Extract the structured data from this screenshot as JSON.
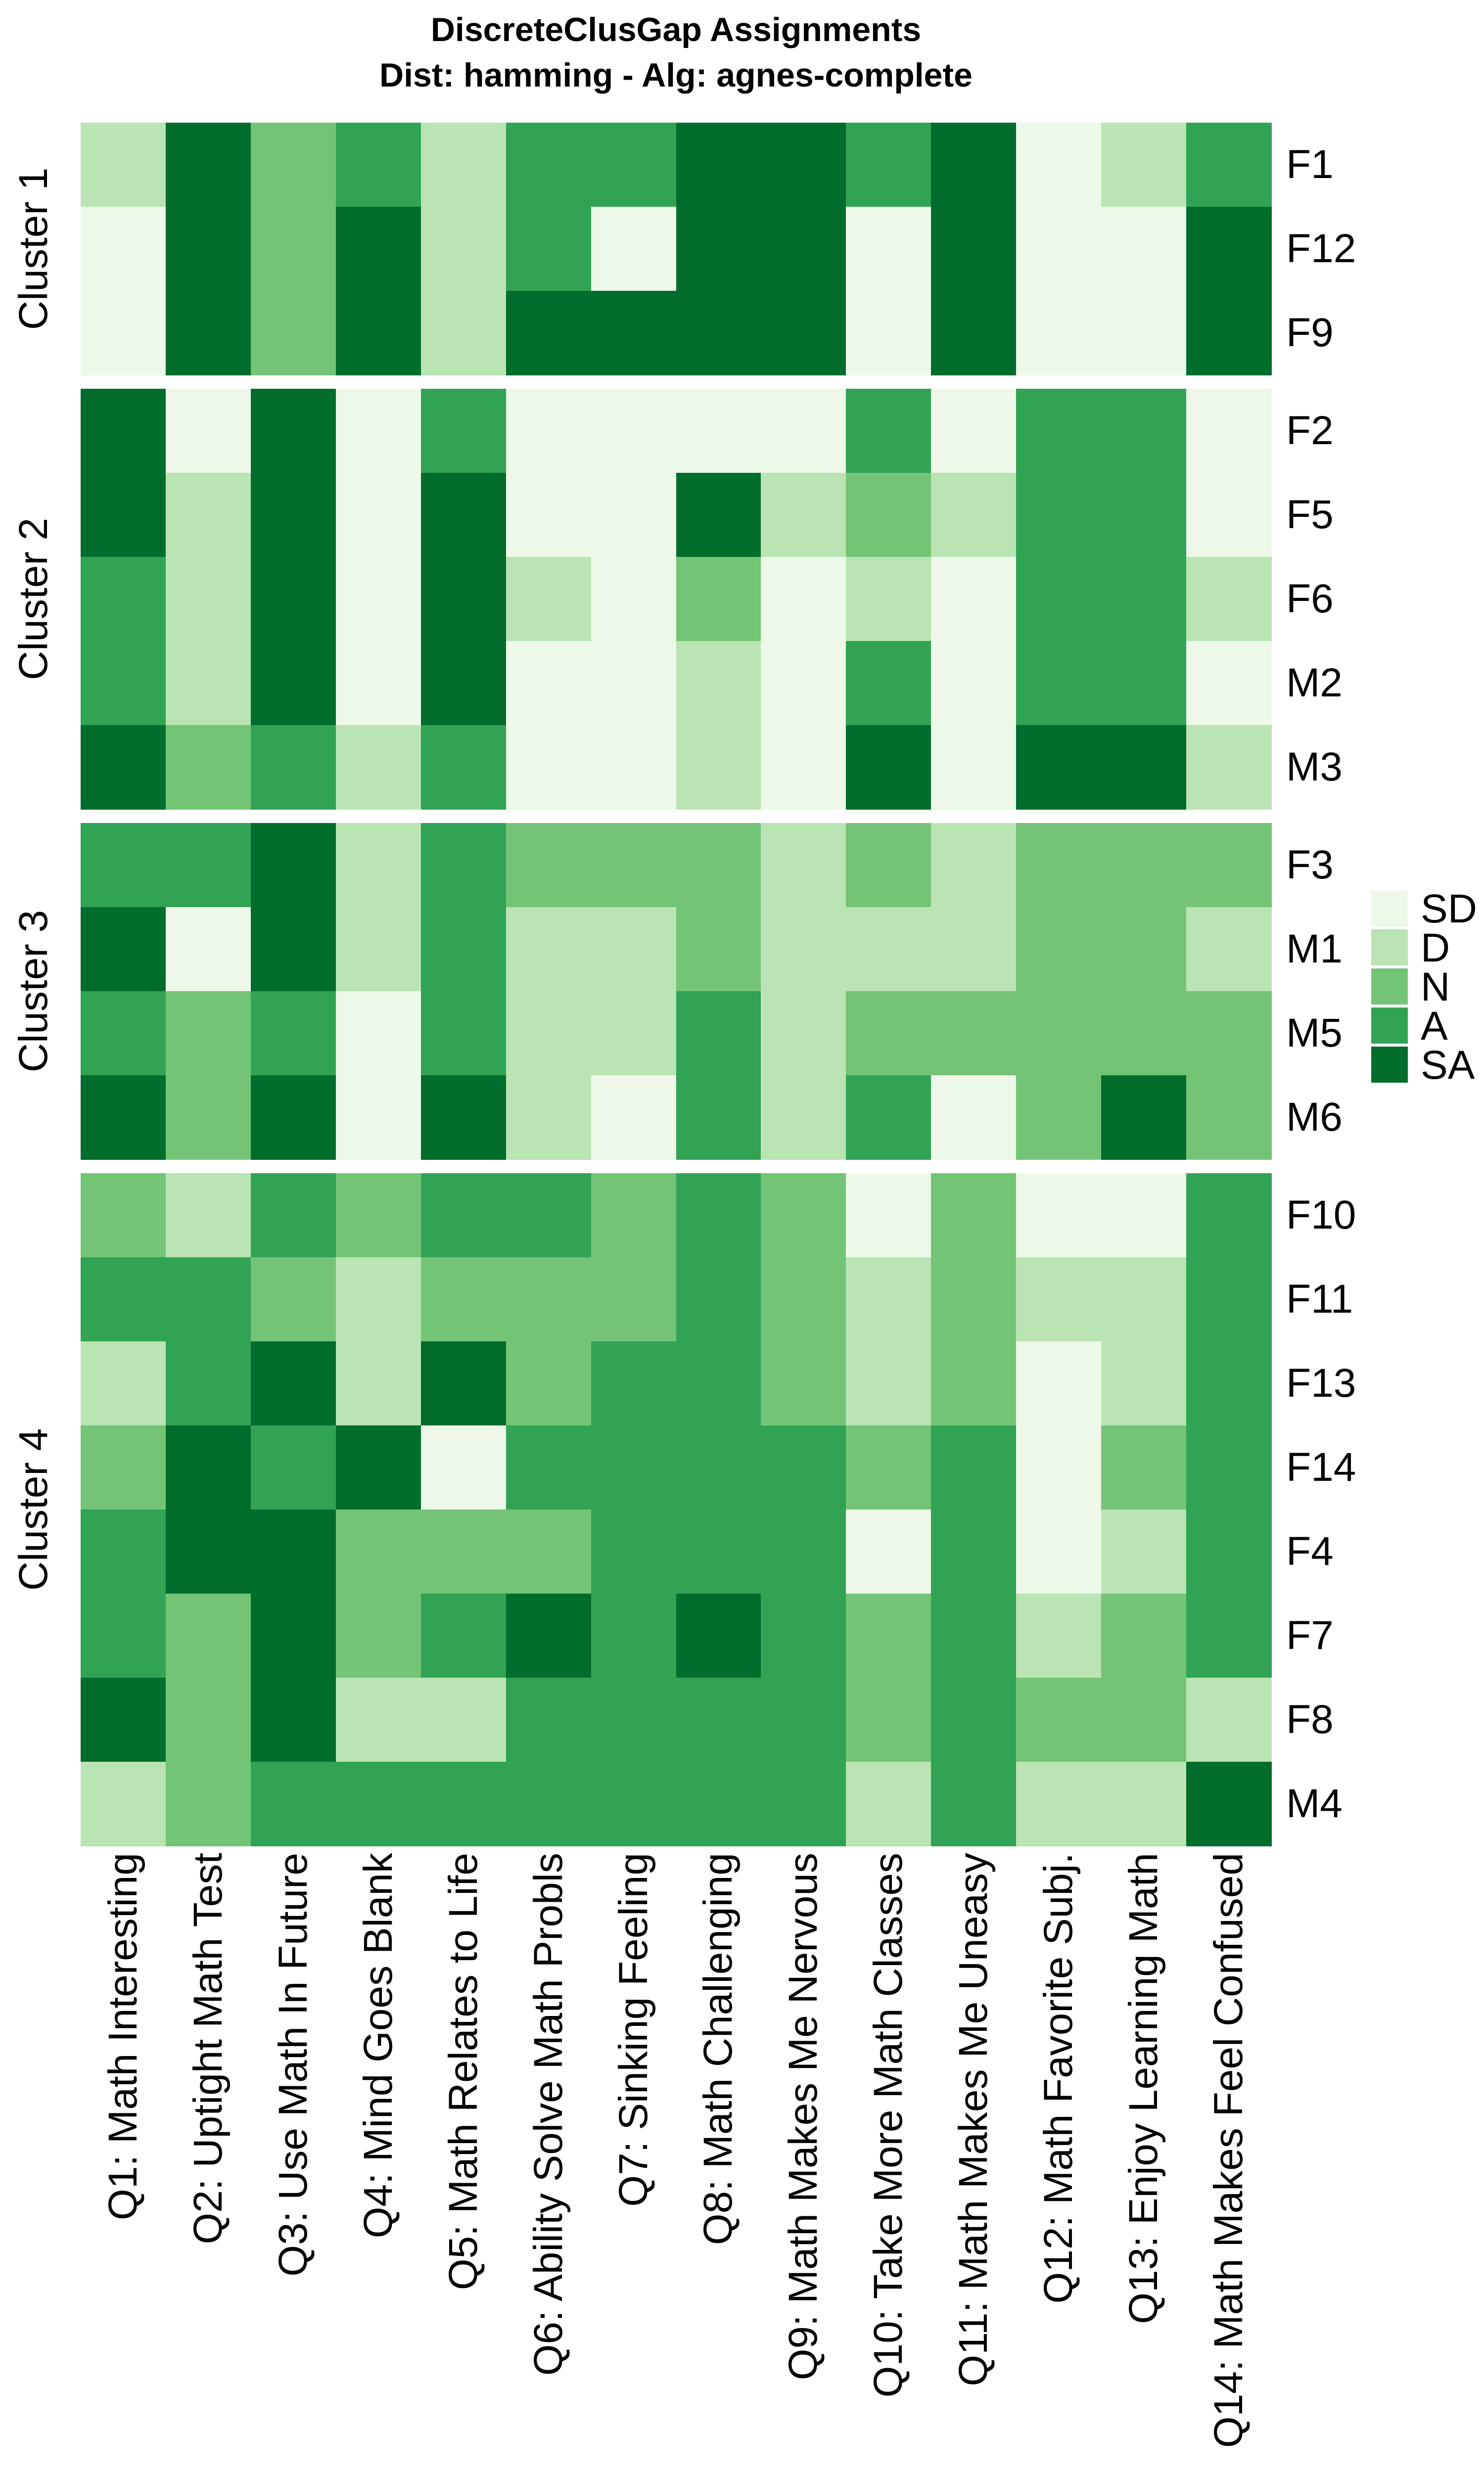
{
  "title": {
    "line1": "DiscreteClusGap Assignments",
    "line2": "Dist: hamming - Alg: agnes-complete"
  },
  "legend": {
    "items": [
      {
        "label": "SD",
        "color": "#EDF8E9"
      },
      {
        "label": "D",
        "color": "#BAE4B3"
      },
      {
        "label": "N",
        "color": "#74C476"
      },
      {
        "label": "A",
        "color": "#31A354"
      },
      {
        "label": "SA",
        "color": "#006D2C"
      }
    ]
  },
  "chart_data": {
    "type": "heatmap",
    "title": "DiscreteClusGap Assignments",
    "subtitle": "Dist: hamming - Alg: agnes-complete",
    "value_levels": [
      "SD",
      "D",
      "N",
      "A",
      "SA"
    ],
    "level_colors": {
      "SD": "#EDF8E9",
      "D": "#BAE4B3",
      "N": "#74C476",
      "A": "#31A354",
      "SA": "#006D2C"
    },
    "legend_position": "right",
    "grid": "off",
    "x_labels": [
      "Q1: Math Interesting",
      "Q2: Uptight Math Test",
      "Q3: Use Math In Future",
      "Q4: Mind Goes Blank",
      "Q5: Math Relates to Life",
      "Q6: Ability Solve Math Probls",
      "Q7: Sinking Feeling",
      "Q8: Math Challenging",
      "Q9: Math Makes Me Nervous",
      "Q10: Take More Math Classes",
      "Q11: Math Makes Me Uneasy",
      "Q12: Math Favorite Subj.",
      "Q13: Enjoy Learning Math",
      "Q14: Math Makes Feel Confused"
    ],
    "clusters": [
      {
        "name": "Cluster 1",
        "rows": [
          {
            "label": "F1",
            "values": [
              "D",
              "SA",
              "N",
              "A",
              "D",
              "A",
              "A",
              "SA",
              "SA",
              "A",
              "SA",
              "SD",
              "D",
              "A"
            ]
          },
          {
            "label": "F12",
            "values": [
              "SD",
              "SA",
              "N",
              "SA",
              "D",
              "A",
              "SD",
              "SA",
              "SA",
              "SD",
              "SA",
              "SD",
              "SD",
              "SA"
            ]
          },
          {
            "label": "F9",
            "values": [
              "SD",
              "SA",
              "N",
              "SA",
              "D",
              "SA",
              "SA",
              "SA",
              "SA",
              "SD",
              "SA",
              "SD",
              "SD",
              "SA"
            ]
          }
        ]
      },
      {
        "name": "Cluster 2",
        "rows": [
          {
            "label": "F2",
            "values": [
              "SA",
              "SD",
              "SA",
              "SD",
              "A",
              "SD",
              "SD",
              "SD",
              "SD",
              "A",
              "SD",
              "A",
              "A",
              "SD"
            ]
          },
          {
            "label": "F5",
            "values": [
              "SA",
              "D",
              "SA",
              "SD",
              "SA",
              "SD",
              "SD",
              "SA",
              "D",
              "N",
              "D",
              "A",
              "A",
              "SD"
            ]
          },
          {
            "label": "F6",
            "values": [
              "A",
              "D",
              "SA",
              "SD",
              "SA",
              "D",
              "SD",
              "N",
              "SD",
              "D",
              "SD",
              "A",
              "A",
              "D"
            ]
          },
          {
            "label": "M2",
            "values": [
              "A",
              "D",
              "SA",
              "SD",
              "SA",
              "SD",
              "SD",
              "D",
              "SD",
              "A",
              "SD",
              "A",
              "A",
              "SD"
            ]
          },
          {
            "label": "M3",
            "values": [
              "SA",
              "N",
              "A",
              "D",
              "A",
              "SD",
              "SD",
              "D",
              "SD",
              "SA",
              "SD",
              "SA",
              "SA",
              "D"
            ]
          }
        ]
      },
      {
        "name": "Cluster 3",
        "rows": [
          {
            "label": "F3",
            "values": [
              "A",
              "A",
              "SA",
              "D",
              "A",
              "N",
              "N",
              "N",
              "D",
              "N",
              "D",
              "N",
              "N",
              "N"
            ]
          },
          {
            "label": "M1",
            "values": [
              "SA",
              "SD",
              "SA",
              "D",
              "A",
              "D",
              "D",
              "N",
              "D",
              "D",
              "D",
              "N",
              "N",
              "D"
            ]
          },
          {
            "label": "M5",
            "values": [
              "A",
              "N",
              "A",
              "SD",
              "A",
              "D",
              "D",
              "A",
              "D",
              "N",
              "N",
              "N",
              "N",
              "N"
            ]
          },
          {
            "label": "M6",
            "values": [
              "SA",
              "N",
              "SA",
              "SD",
              "SA",
              "D",
              "SD",
              "A",
              "D",
              "A",
              "SD",
              "N",
              "SA",
              "N"
            ]
          }
        ]
      },
      {
        "name": "Cluster 4",
        "rows": [
          {
            "label": "F10",
            "values": [
              "N",
              "D",
              "A",
              "N",
              "A",
              "A",
              "N",
              "A",
              "N",
              "SD",
              "N",
              "SD",
              "SD",
              "A"
            ]
          },
          {
            "label": "F11",
            "values": [
              "A",
              "A",
              "N",
              "D",
              "N",
              "N",
              "N",
              "A",
              "N",
              "D",
              "N",
              "D",
              "D",
              "A"
            ]
          },
          {
            "label": "F13",
            "values": [
              "D",
              "A",
              "SA",
              "D",
              "SA",
              "N",
              "A",
              "A",
              "N",
              "D",
              "N",
              "SD",
              "D",
              "A"
            ]
          },
          {
            "label": "F14",
            "values": [
              "N",
              "SA",
              "A",
              "SA",
              "SD",
              "A",
              "A",
              "A",
              "A",
              "N",
              "A",
              "SD",
              "N",
              "A"
            ]
          },
          {
            "label": "F4",
            "values": [
              "A",
              "SA",
              "SA",
              "N",
              "N",
              "N",
              "A",
              "A",
              "A",
              "SD",
              "A",
              "SD",
              "D",
              "A"
            ]
          },
          {
            "label": "F7",
            "values": [
              "A",
              "N",
              "SA",
              "N",
              "A",
              "SA",
              "A",
              "SA",
              "A",
              "N",
              "A",
              "D",
              "N",
              "A"
            ]
          },
          {
            "label": "F8",
            "values": [
              "SA",
              "N",
              "SA",
              "D",
              "D",
              "A",
              "A",
              "A",
              "A",
              "N",
              "A",
              "N",
              "N",
              "D"
            ]
          },
          {
            "label": "M4",
            "values": [
              "D",
              "N",
              "A",
              "A",
              "A",
              "A",
              "A",
              "A",
              "A",
              "D",
              "A",
              "D",
              "D",
              "SA"
            ]
          }
        ]
      }
    ]
  }
}
